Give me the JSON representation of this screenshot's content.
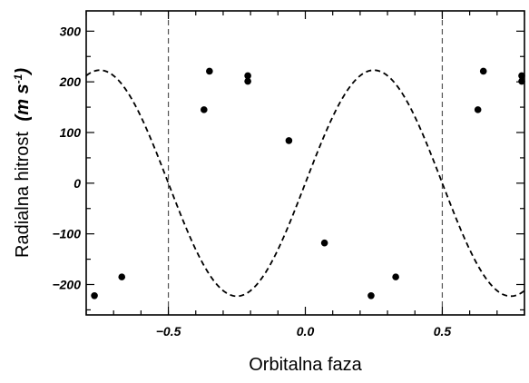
{
  "chart_data": {
    "type": "scatter",
    "xlabel": "Orbitalna faza",
    "ylabel": "Radialna hitrost",
    "ylabel_unit": "(m s",
    "ylabel_unit_exp": "-1",
    "ylabel_unit_close": ")",
    "xlim": [
      -0.8,
      0.8
    ],
    "ylim": [
      -260,
      340
    ],
    "x_ticks": [
      -0.5,
      0.0,
      0.5
    ],
    "x_tick_labels": [
      "−0.5",
      "0.0",
      "0.5"
    ],
    "y_ticks": [
      -200,
      -100,
      0,
      100,
      200,
      300
    ],
    "y_tick_labels": [
      "−200",
      "−100",
      "0",
      "100",
      "200",
      "300"
    ],
    "grid": false,
    "vertical_reference_lines": [
      -0.5,
      0.5
    ],
    "series": [
      {
        "kind": "points",
        "marker": "circle",
        "color": "#000000",
        "x": [
          -0.77,
          -0.67,
          -0.37,
          -0.35,
          -0.21,
          -0.21,
          -0.06,
          0.07,
          0.24,
          0.33,
          0.63,
          0.65,
          0.79,
          0.79
        ],
        "y": [
          -222,
          -185,
          145,
          221,
          212,
          201,
          84,
          -118,
          -222,
          -185,
          145,
          221,
          212,
          201
        ]
      },
      {
        "kind": "fit",
        "style": "dashed",
        "color": "#000000",
        "function": "sine",
        "amplitude": 223,
        "period": 1.0,
        "zero_crossing": -0.5
      }
    ]
  }
}
